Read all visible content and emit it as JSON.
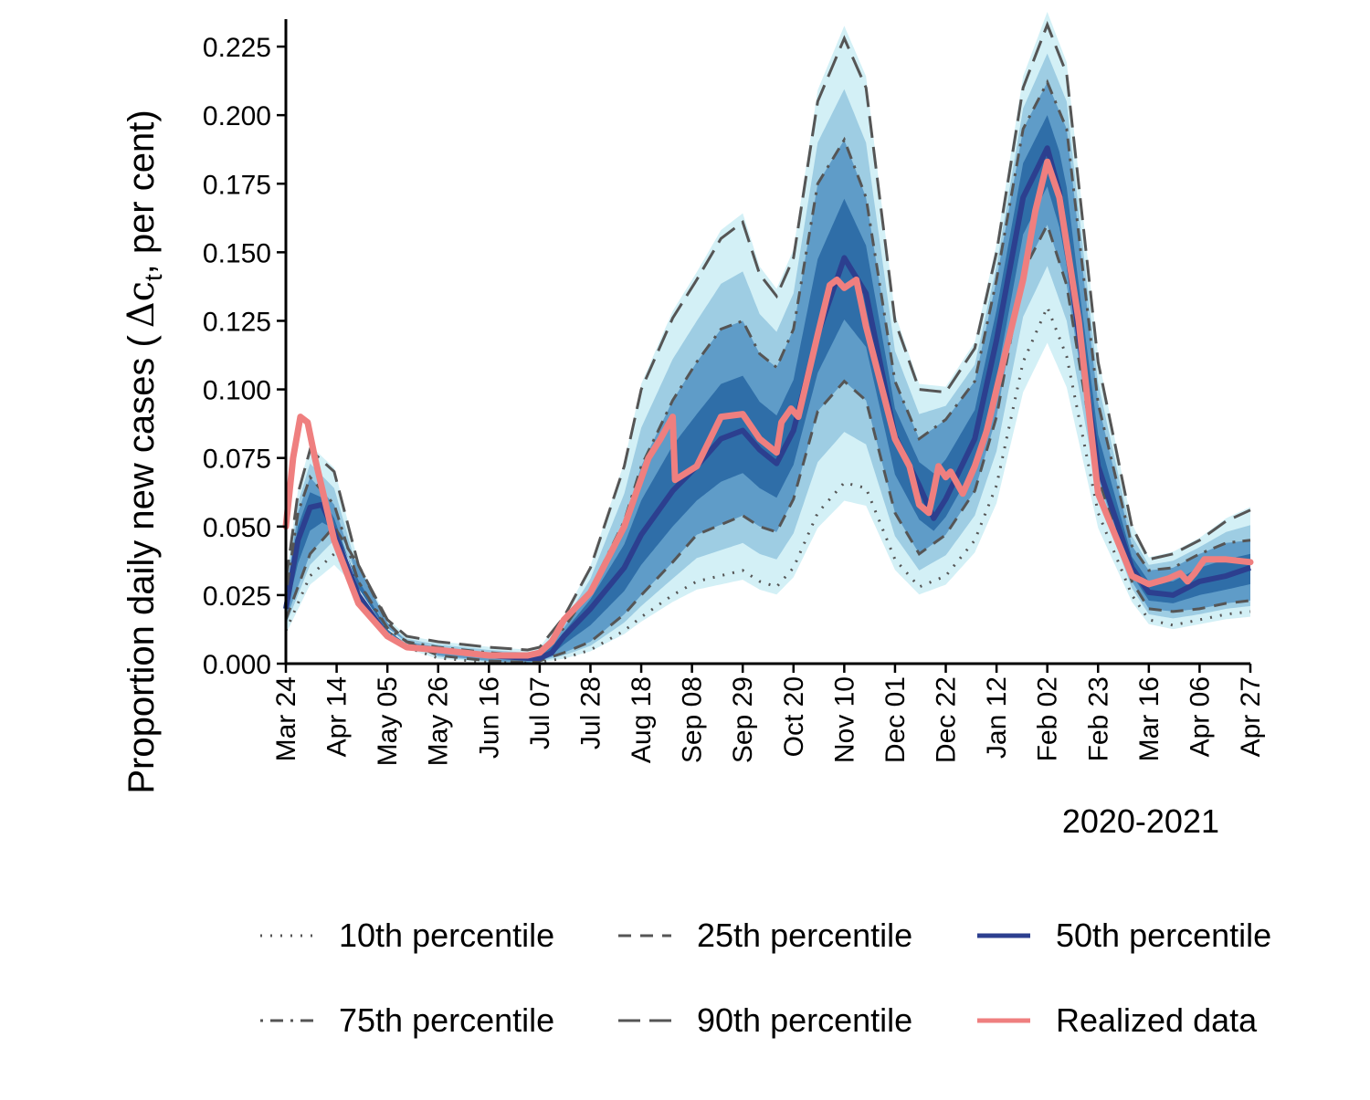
{
  "chart_data": {
    "type": "line",
    "title": "",
    "ylabel_main": "Proportion daily new cases (",
    "ylabel_symbol": "Δc",
    "ylabel_sub": "t",
    "ylabel_tail": ", per cent)",
    "xlabel": "2020-2021",
    "ylim": [
      0,
      0.235
    ],
    "y_ticks": [
      0.0,
      0.025,
      0.05,
      0.075,
      0.1,
      0.125,
      0.15,
      0.175,
      0.2,
      0.225
    ],
    "y_tick_labels": [
      "0.000",
      "0.025",
      "0.050",
      "0.075",
      "0.100",
      "0.125",
      "0.150",
      "0.175",
      "0.200",
      "0.225"
    ],
    "x_range_days": [
      0,
      399
    ],
    "x_ticks_days": [
      0,
      21,
      42,
      63,
      84,
      105,
      126,
      147,
      168,
      189,
      210,
      231,
      252,
      273,
      294,
      315,
      336,
      357,
      378,
      399
    ],
    "x_tick_labels": [
      "Mar 24",
      "Apr 14",
      "May 05",
      "May 26",
      "Jun 16",
      "Jul 07",
      "Jul 28",
      "Aug 18",
      "Sep 08",
      "Sep 29",
      "Oct 20",
      "Nov 10",
      "Dec 01",
      "Dec 22",
      "Jan 12",
      "Feb 02",
      "Feb 23",
      "Mar 16",
      "Apr 06",
      "Apr 27"
    ],
    "colors": {
      "fan_outer": "#d3f0f6",
      "fan_mid": "#9ecde3",
      "fan_inner": "#5f9cc8",
      "fan_core": "#2f6ea8",
      "percentile_lines": "#555555",
      "median": "#2c3f8f",
      "realized": "#ef7f7f"
    },
    "series": [
      {
        "name": "10th percentile",
        "style": "dotted",
        "x": [
          0,
          10,
          20,
          30,
          42,
          50,
          63,
          84,
          100,
          105,
          115,
          126,
          140,
          147,
          160,
          170,
          189,
          196,
          203,
          210,
          220,
          231,
          240,
          252,
          262,
          273,
          285,
          294,
          305,
          315,
          323,
          336,
          350,
          357,
          367,
          378,
          389,
          399
        ],
        "values": [
          0.012,
          0.032,
          0.04,
          0.03,
          0.012,
          0.006,
          0.002,
          0.0005,
          0.0003,
          0.0005,
          0.002,
          0.005,
          0.012,
          0.017,
          0.025,
          0.03,
          0.034,
          0.03,
          0.028,
          0.035,
          0.055,
          0.066,
          0.064,
          0.038,
          0.028,
          0.032,
          0.045,
          0.065,
          0.11,
          0.13,
          0.112,
          0.055,
          0.025,
          0.016,
          0.014,
          0.016,
          0.018,
          0.019
        ]
      },
      {
        "name": "25th percentile",
        "style": "dashed",
        "x": [
          0,
          10,
          20,
          30,
          42,
          50,
          63,
          84,
          100,
          105,
          115,
          126,
          140,
          147,
          160,
          170,
          189,
          196,
          203,
          210,
          220,
          231,
          240,
          252,
          262,
          273,
          285,
          294,
          305,
          315,
          323,
          336,
          350,
          357,
          367,
          378,
          389,
          399
        ],
        "values": [
          0.016,
          0.04,
          0.05,
          0.036,
          0.015,
          0.008,
          0.003,
          0.001,
          0.0005,
          0.001,
          0.004,
          0.008,
          0.018,
          0.025,
          0.037,
          0.047,
          0.054,
          0.05,
          0.048,
          0.06,
          0.092,
          0.103,
          0.096,
          0.055,
          0.04,
          0.047,
          0.063,
          0.09,
          0.143,
          0.16,
          0.138,
          0.068,
          0.03,
          0.02,
          0.019,
          0.02,
          0.022,
          0.023
        ]
      },
      {
        "name": "50th percentile",
        "style": "solid",
        "x": [
          0,
          5,
          10,
          15,
          20,
          30,
          42,
          50,
          63,
          84,
          100,
          105,
          110,
          115,
          126,
          140,
          147,
          160,
          170,
          180,
          189,
          196,
          203,
          210,
          220,
          231,
          240,
          252,
          262,
          268,
          273,
          285,
          294,
          305,
          315,
          320,
          328,
          336,
          350,
          357,
          367,
          378,
          389,
          399
        ],
        "values": [
          0.02,
          0.045,
          0.057,
          0.058,
          0.048,
          0.025,
          0.01,
          0.006,
          0.005,
          0.003,
          0.002,
          0.002,
          0.004,
          0.01,
          0.02,
          0.035,
          0.047,
          0.063,
          0.072,
          0.082,
          0.085,
          0.078,
          0.073,
          0.085,
          0.12,
          0.148,
          0.135,
          0.083,
          0.065,
          0.053,
          0.06,
          0.082,
          0.118,
          0.17,
          0.188,
          0.172,
          0.12,
          0.072,
          0.035,
          0.026,
          0.025,
          0.03,
          0.032,
          0.035
        ]
      },
      {
        "name": "75th percentile",
        "style": "dotdash",
        "x": [
          0,
          5,
          10,
          20,
          30,
          42,
          50,
          63,
          84,
          100,
          105,
          115,
          126,
          140,
          147,
          160,
          170,
          180,
          189,
          196,
          203,
          210,
          220,
          231,
          240,
          252,
          262,
          273,
          285,
          294,
          305,
          315,
          323,
          336,
          350,
          357,
          367,
          378,
          389,
          399
        ],
        "values": [
          0.025,
          0.055,
          0.068,
          0.058,
          0.03,
          0.013,
          0.008,
          0.006,
          0.004,
          0.003,
          0.004,
          0.013,
          0.027,
          0.052,
          0.072,
          0.096,
          0.11,
          0.122,
          0.125,
          0.113,
          0.108,
          0.122,
          0.175,
          0.191,
          0.17,
          0.103,
          0.082,
          0.089,
          0.103,
          0.14,
          0.195,
          0.212,
          0.195,
          0.095,
          0.043,
          0.034,
          0.035,
          0.04,
          0.044,
          0.045
        ]
      },
      {
        "name": "90th percentile",
        "style": "longdash",
        "x": [
          0,
          5,
          10,
          20,
          30,
          42,
          50,
          63,
          84,
          100,
          105,
          115,
          126,
          140,
          147,
          160,
          170,
          180,
          189,
          196,
          203,
          210,
          220,
          231,
          240,
          252,
          262,
          273,
          285,
          294,
          305,
          315,
          323,
          336,
          350,
          357,
          367,
          378,
          389,
          399
        ],
        "values": [
          0.03,
          0.062,
          0.078,
          0.07,
          0.036,
          0.016,
          0.01,
          0.008,
          0.006,
          0.005,
          0.006,
          0.017,
          0.035,
          0.072,
          0.1,
          0.126,
          0.14,
          0.155,
          0.161,
          0.142,
          0.134,
          0.148,
          0.205,
          0.228,
          0.21,
          0.125,
          0.1,
          0.099,
          0.115,
          0.15,
          0.21,
          0.233,
          0.215,
          0.11,
          0.05,
          0.038,
          0.04,
          0.045,
          0.052,
          0.056
        ]
      },
      {
        "name": "Realized data",
        "style": "solid",
        "x": [
          0,
          3,
          6,
          9,
          12,
          20,
          30,
          42,
          50,
          63,
          84,
          100,
          105,
          110,
          115,
          126,
          140,
          150,
          155,
          160,
          161,
          170,
          180,
          189,
          196,
          203,
          205,
          209,
          212,
          220,
          225,
          228,
          231,
          236,
          240,
          252,
          258,
          262,
          266,
          268,
          270,
          273,
          275,
          280,
          285,
          290,
          294,
          305,
          310,
          315,
          320,
          328,
          336,
          350,
          357,
          365,
          370,
          373,
          376,
          380,
          389,
          399
        ],
        "values": [
          0.05,
          0.075,
          0.09,
          0.088,
          0.075,
          0.045,
          0.022,
          0.01,
          0.006,
          0.005,
          0.003,
          0.003,
          0.004,
          0.008,
          0.016,
          0.026,
          0.05,
          0.075,
          0.082,
          0.09,
          0.067,
          0.072,
          0.09,
          0.091,
          0.082,
          0.077,
          0.088,
          0.093,
          0.09,
          0.12,
          0.138,
          0.14,
          0.137,
          0.14,
          0.123,
          0.082,
          0.072,
          0.058,
          0.055,
          0.063,
          0.072,
          0.068,
          0.07,
          0.062,
          0.072,
          0.085,
          0.1,
          0.14,
          0.165,
          0.183,
          0.17,
          0.125,
          0.062,
          0.032,
          0.029,
          0.031,
          0.033,
          0.03,
          0.033,
          0.038,
          0.038,
          0.037
        ]
      }
    ],
    "legend": [
      {
        "label": "10th percentile",
        "style": "dotted"
      },
      {
        "label": "25th percentile",
        "style": "dashed"
      },
      {
        "label": "50th percentile",
        "style": "solid-median"
      },
      {
        "label": "75th percentile",
        "style": "dotdash"
      },
      {
        "label": "90th percentile",
        "style": "longdash"
      },
      {
        "label": "Realized data",
        "style": "solid-realized"
      }
    ],
    "legend_position": "bottom"
  }
}
